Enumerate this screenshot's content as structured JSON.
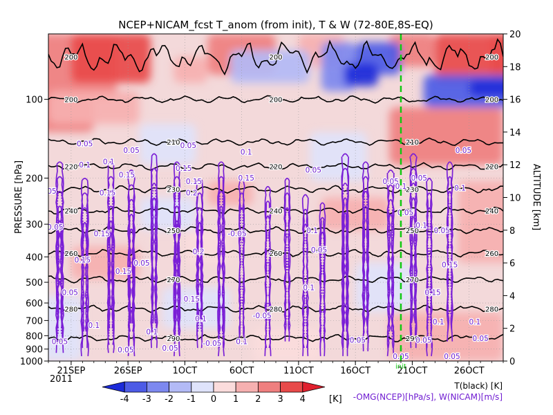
{
  "chart_data": {
    "type": "heatmap",
    "title": "NCEP+NICAM_fcst T_anom (from init), T & W  (72-80E,8S-EQ)",
    "xlabel": "",
    "ylabel_left": "PRESSURE [hPa]",
    "ylabel_right": "ALTITUDE [km]",
    "x_range": [
      "2011-09-19",
      "2011-10-29"
    ],
    "x_ticks": [
      {
        "label": "21SEP",
        "date": "2011-09-21"
      },
      {
        "label": "26SEP",
        "date": "2011-09-26"
      },
      {
        "label": "1OCT",
        "date": "2011-10-01"
      },
      {
        "label": "6OCT",
        "date": "2011-10-06"
      },
      {
        "label": "11OCT",
        "date": "2011-10-11"
      },
      {
        "label": "16OCT",
        "date": "2011-10-16"
      },
      {
        "label": "21OCT",
        "date": "2011-10-21"
      },
      {
        "label": "26OCT",
        "date": "2011-10-26"
      }
    ],
    "x_year_label": "2011",
    "pressure_ticks": [
      1000,
      900,
      800,
      700,
      600,
      500,
      400,
      300,
      200,
      100
    ],
    "altitude_ticks": [
      0,
      2,
      4,
      6,
      8,
      10,
      12,
      14,
      16,
      18,
      20
    ],
    "altitude_range": [
      0,
      20
    ],
    "init_marker": {
      "date": "2011-10-20",
      "label": "init"
    },
    "colorbar": {
      "ticks": [
        -4,
        -3,
        -2,
        -1,
        0,
        1,
        2,
        3,
        4
      ],
      "unit": "[K]",
      "colors": [
        "#1c2bd9",
        "#4d5be6",
        "#7d88ef",
        "#b3baf6",
        "#dfe3fb",
        "#fbdcdc",
        "#f6b0b0",
        "#ef7f7f",
        "#e84a4a",
        "#e0202e"
      ]
    },
    "temperature_contours": {
      "label": "T(black) [K]",
      "levels": [
        {
          "value": 200,
          "alt": 16.0
        },
        {
          "value": 210,
          "alt": 13.4
        },
        {
          "value": 220,
          "alt": 11.9
        },
        {
          "value": 230,
          "alt": 10.5
        },
        {
          "value": 240,
          "alt": 9.2
        },
        {
          "value": 250,
          "alt": 8.0
        },
        {
          "value": 260,
          "alt": 6.6
        },
        {
          "value": 270,
          "alt": 5.0
        },
        {
          "value": 280,
          "alt": 3.2
        },
        {
          "value": 290,
          "alt": 1.4
        }
      ]
    },
    "upper_200_contour": {
      "value": 200,
      "alt": 18.6
    },
    "omega_contours": {
      "label": "-OMG(NCEP)[hPa/s], W(NICAM)[m/s]",
      "level_labels": [
        "0.05",
        "0.1",
        "0.15",
        "0.2"
      ]
    },
    "anomaly_blobs": [
      {
        "d0": -2,
        "d1": 6,
        "a0": 16,
        "a1": 20,
        "anom": 2.5
      },
      {
        "d0": 2,
        "d1": 9,
        "a0": 17,
        "a1": 20,
        "anom": 3.5
      },
      {
        "d0": 14,
        "d1": 20,
        "a0": 17.5,
        "a1": 20,
        "anom": 2.5
      },
      {
        "d0": 22,
        "d1": 26,
        "a0": 18,
        "a1": 20,
        "anom": 1.8
      },
      {
        "d0": 11,
        "d1": 14,
        "a0": 17,
        "a1": 18.6,
        "anom": 1.5
      },
      {
        "d0": -2,
        "d1": 4,
        "a0": 14,
        "a1": 16,
        "anom": 2.0
      },
      {
        "d0": 0,
        "d1": 8,
        "a0": 14.5,
        "a1": 16.5,
        "anom": 1.5
      },
      {
        "d0": 30,
        "d1": 40,
        "a0": 12,
        "a1": 15.5,
        "anom": 2.5
      },
      {
        "d0": 34,
        "d1": 40,
        "a0": 17,
        "a1": 20,
        "anom": 3.0
      },
      {
        "d0": 39,
        "d1": 42,
        "a0": 17,
        "a1": 20,
        "anom": 3.5
      },
      {
        "d0": 30,
        "d1": 34,
        "a0": 18,
        "a1": 20,
        "anom": 2.0
      },
      {
        "d0": 14,
        "d1": 18,
        "a0": 9.5,
        "a1": 11,
        "anom": 1.0
      },
      {
        "d0": 24,
        "d1": 30,
        "a0": 8,
        "a1": 10,
        "anom": 1.2
      },
      {
        "d0": 2,
        "d1": 8,
        "a0": 5,
        "a1": 7,
        "anom": 1.0
      },
      {
        "d0": 12,
        "d1": 16,
        "a0": 6,
        "a1": 8,
        "anom": 0.8
      },
      {
        "d0": 18,
        "d1": 24,
        "a0": 0,
        "a1": 2,
        "anom": 0.8
      },
      {
        "d0": 30,
        "d1": 40,
        "a0": 0,
        "a1": 3,
        "anom": 1.2
      },
      {
        "d0": 36,
        "d1": 41,
        "a0": 6,
        "a1": 11,
        "anom": 1.5
      },
      {
        "d0": 24,
        "d1": 27,
        "a0": 16.5,
        "a1": 19.5,
        "anom": -2.5
      },
      {
        "d0": 27,
        "d1": 31,
        "a0": 17.5,
        "a1": 19.5,
        "anom": -3.5
      },
      {
        "d0": 26,
        "d1": 29,
        "a0": 16.8,
        "a1": 18.2,
        "anom": -4.2
      },
      {
        "d0": 16,
        "d1": 23,
        "a0": 17,
        "a1": 19,
        "anom": -2.0
      },
      {
        "d0": 33,
        "d1": 42,
        "a0": 15.5,
        "a1": 17.5,
        "anom": -3.5
      },
      {
        "d0": 37,
        "d1": 42,
        "a0": 16.2,
        "a1": 17.2,
        "anom": -4.5
      },
      {
        "d0": 23,
        "d1": 28,
        "a0": 11,
        "a1": 14,
        "anom": -1.0
      },
      {
        "d0": 8,
        "d1": 13,
        "a0": 12,
        "a1": 14.5,
        "anom": -1.0
      },
      {
        "d0": -2,
        "d1": 3,
        "a0": 0,
        "a1": 4,
        "anom": -0.8
      },
      {
        "d0": 10,
        "d1": 16,
        "a0": 2,
        "a1": 4.5,
        "anom": -0.8
      },
      {
        "d0": 27,
        "d1": 32,
        "a0": 3,
        "a1": 6,
        "anom": -0.7
      },
      {
        "d0": 8,
        "d1": 13,
        "a0": 8,
        "a1": 10,
        "anom": -0.6
      }
    ],
    "omega_cells": [
      {
        "d": 1.0,
        "a0": 0.5,
        "a1": 12,
        "n": 5,
        "w": 0.22
      },
      {
        "d": 3.2,
        "a0": 0.3,
        "a1": 11,
        "n": 4,
        "w": 0.22
      },
      {
        "d": 5.5,
        "a0": 0.5,
        "a1": 12,
        "n": 5,
        "w": 0.2
      },
      {
        "d": 7.3,
        "a0": 0.3,
        "a1": 11.5,
        "n": 5,
        "w": 0.2
      },
      {
        "d": 9.3,
        "a0": 0.8,
        "a1": 12.5,
        "n": 4,
        "w": 0.18
      },
      {
        "d": 11.3,
        "a0": 0.3,
        "a1": 12,
        "n": 5,
        "w": 0.18
      },
      {
        "d": 13.3,
        "a0": 0.8,
        "a1": 11,
        "n": 4,
        "w": 0.18
      },
      {
        "d": 15.2,
        "a0": 0.3,
        "a1": 12,
        "n": 4,
        "w": 0.2
      },
      {
        "d": 17.0,
        "a0": 1.0,
        "a1": 11,
        "n": 3,
        "w": 0.15
      },
      {
        "d": 19.3,
        "a0": 0.3,
        "a1": 10.5,
        "n": 3,
        "w": 0.15
      },
      {
        "d": 21.0,
        "a0": 1.2,
        "a1": 11,
        "n": 3,
        "w": 0.15
      },
      {
        "d": 22.6,
        "a0": 0.3,
        "a1": 10,
        "n": 3,
        "w": 0.15
      },
      {
        "d": 24.1,
        "a0": 0.3,
        "a1": 9.5,
        "n": 3,
        "w": 0.15
      },
      {
        "d": 26.1,
        "a0": 0.3,
        "a1": 12.5,
        "n": 5,
        "w": 0.2
      },
      {
        "d": 27.9,
        "a0": 0.6,
        "a1": 12,
        "n": 4,
        "w": 0.18
      },
      {
        "d": 30.1,
        "a0": 0.3,
        "a1": 11.5,
        "n": 4,
        "w": 0.18
      },
      {
        "d": 32.1,
        "a0": 0.8,
        "a1": 12.5,
        "n": 4,
        "w": 0.2
      },
      {
        "d": 33.5,
        "a0": 0.3,
        "a1": 11,
        "n": 3,
        "w": 0.15
      },
      {
        "d": 35.3,
        "a0": 1.2,
        "a1": 12,
        "n": 3,
        "w": 0.15
      }
    ],
    "omega_labels": [
      {
        "t": "0.05",
        "d": 3.2,
        "a": 13.3
      },
      {
        "t": "0.1",
        "d": 3.2,
        "a": 12.0
      },
      {
        "t": "0.05",
        "d": 7.3,
        "a": 12.9
      },
      {
        "t": "0.1",
        "d": 5.3,
        "a": 12.2
      },
      {
        "t": "0.15",
        "d": 6.9,
        "a": 11.4
      },
      {
        "t": "0.05",
        "d": 0.0,
        "a": 10.4
      },
      {
        "t": "0.15",
        "d": 5.2,
        "a": 10.3
      },
      {
        "t": "0.05",
        "d": 0.6,
        "a": 8.2
      },
      {
        "t": "0.15",
        "d": 4.7,
        "a": 7.8
      },
      {
        "t": "0.15",
        "d": 3.0,
        "a": 6.2
      },
      {
        "t": "0.15",
        "d": 6.6,
        "a": 5.5
      },
      {
        "t": "0.05",
        "d": 8.2,
        "a": 6.0
      },
      {
        "t": "0.05",
        "d": 1.9,
        "a": 4.2
      },
      {
        "t": "0.1",
        "d": 4.0,
        "a": 2.2
      },
      {
        "t": "0.05",
        "d": 1.0,
        "a": 1.2
      },
      {
        "t": "0.05",
        "d": 6.8,
        "a": 0.7
      },
      {
        "t": "0.1",
        "d": 9.1,
        "a": 1.8
      },
      {
        "t": "0.05",
        "d": 10.7,
        "a": 0.8
      },
      {
        "t": "0.05",
        "d": 12.3,
        "a": 13.2
      },
      {
        "t": "0.15",
        "d": 11.9,
        "a": 11.8
      },
      {
        "t": "0.15",
        "d": 12.8,
        "a": 11.0
      },
      {
        "t": "0.2",
        "d": 12.6,
        "a": 10.3
      },
      {
        "t": "0.2",
        "d": 13.2,
        "a": 6.7
      },
      {
        "t": "0.15",
        "d": 12.6,
        "a": 3.8
      },
      {
        "t": "0.1",
        "d": 13.4,
        "a": 2.6
      },
      {
        "t": "-0.05",
        "d": 16.6,
        "a": 7.8
      },
      {
        "t": "-0.05",
        "d": 18.8,
        "a": 2.8
      },
      {
        "t": "0.15",
        "d": 17.4,
        "a": 11.2
      },
      {
        "t": "0.1",
        "d": 17.4,
        "a": 12.8
      },
      {
        "t": "0.1",
        "d": 17.0,
        "a": 1.2
      },
      {
        "t": "-0.05",
        "d": 14.4,
        "a": 1.1
      },
      {
        "t": "0.05",
        "d": 23.3,
        "a": 11.7
      },
      {
        "t": "0.05",
        "d": 30.1,
        "a": 11.0
      },
      {
        "t": "0.1",
        "d": 23.2,
        "a": 8.0
      },
      {
        "t": "0.05",
        "d": 23.8,
        "a": 6.8
      },
      {
        "t": "0.1",
        "d": 22.9,
        "a": 4.5
      },
      {
        "t": "0.05",
        "d": 27.2,
        "a": 1.3
      },
      {
        "t": "0.1",
        "d": 31.0,
        "a": 10.7
      },
      {
        "t": "0.05",
        "d": 32.6,
        "a": 11.2
      },
      {
        "t": "0.05",
        "d": 31.4,
        "a": 9.1
      },
      {
        "t": "0.1",
        "d": 32.8,
        "a": 8.3
      },
      {
        "t": "0.05",
        "d": 34.6,
        "a": 8.0
      },
      {
        "t": "0.1",
        "d": 36.2,
        "a": 10.6
      },
      {
        "t": "0.15",
        "d": 35.3,
        "a": 5.9
      },
      {
        "t": "0.1",
        "d": 34.3,
        "a": 2.4
      },
      {
        "t": "0.05",
        "d": 33.0,
        "a": 1.3
      },
      {
        "t": "0.05",
        "d": 38.0,
        "a": 1.4
      },
      {
        "t": "0.05",
        "d": 35.5,
        "a": 0.3
      },
      {
        "t": "0.05",
        "d": 31.0,
        "a": 0.3
      },
      {
        "t": "0.05",
        "d": 36.5,
        "a": 12.9
      },
      {
        "t": "0.15",
        "d": 33.8,
        "a": 4.2
      },
      {
        "t": "0.1",
        "d": 37.5,
        "a": 2.4
      }
    ]
  }
}
